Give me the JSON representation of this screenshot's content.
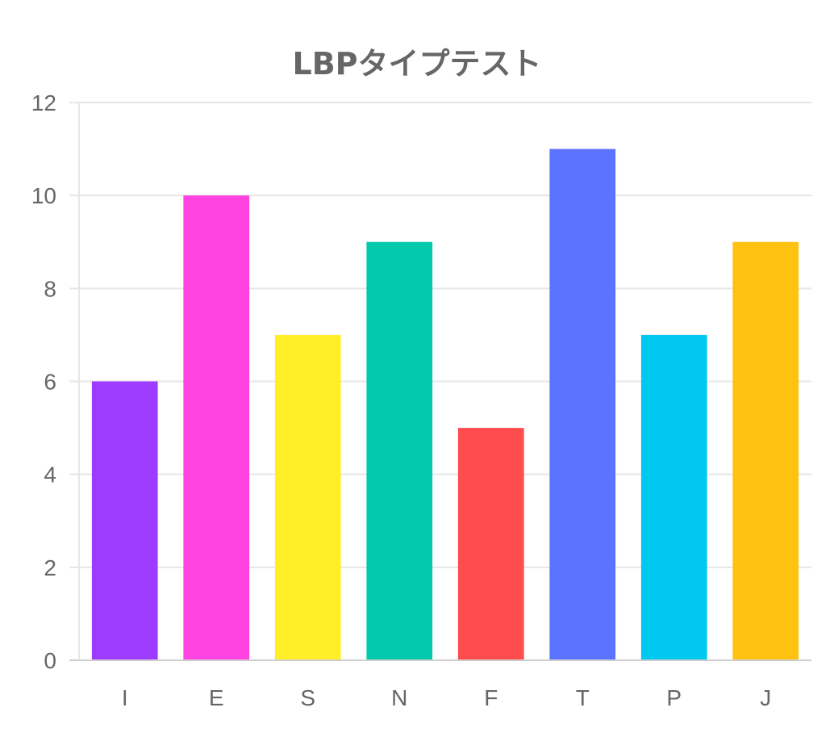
{
  "chart_data": {
    "type": "bar",
    "title": "LBPタイプテスト",
    "xlabel": "",
    "ylabel": "",
    "categories": [
      "I",
      "E",
      "S",
      "N",
      "F",
      "T",
      "P",
      "J"
    ],
    "values": [
      6,
      10,
      7,
      9,
      5,
      11,
      7,
      9
    ],
    "colors": [
      "#9d3cff",
      "#ff42e0",
      "#ffee28",
      "#00c9ad",
      "#ff4d4f",
      "#5b73ff",
      "#00c8f0",
      "#ffc210"
    ],
    "ylim": [
      0,
      12
    ],
    "yticks": [
      0,
      2,
      4,
      6,
      8,
      10,
      12
    ],
    "grid": true,
    "legend": "none"
  }
}
